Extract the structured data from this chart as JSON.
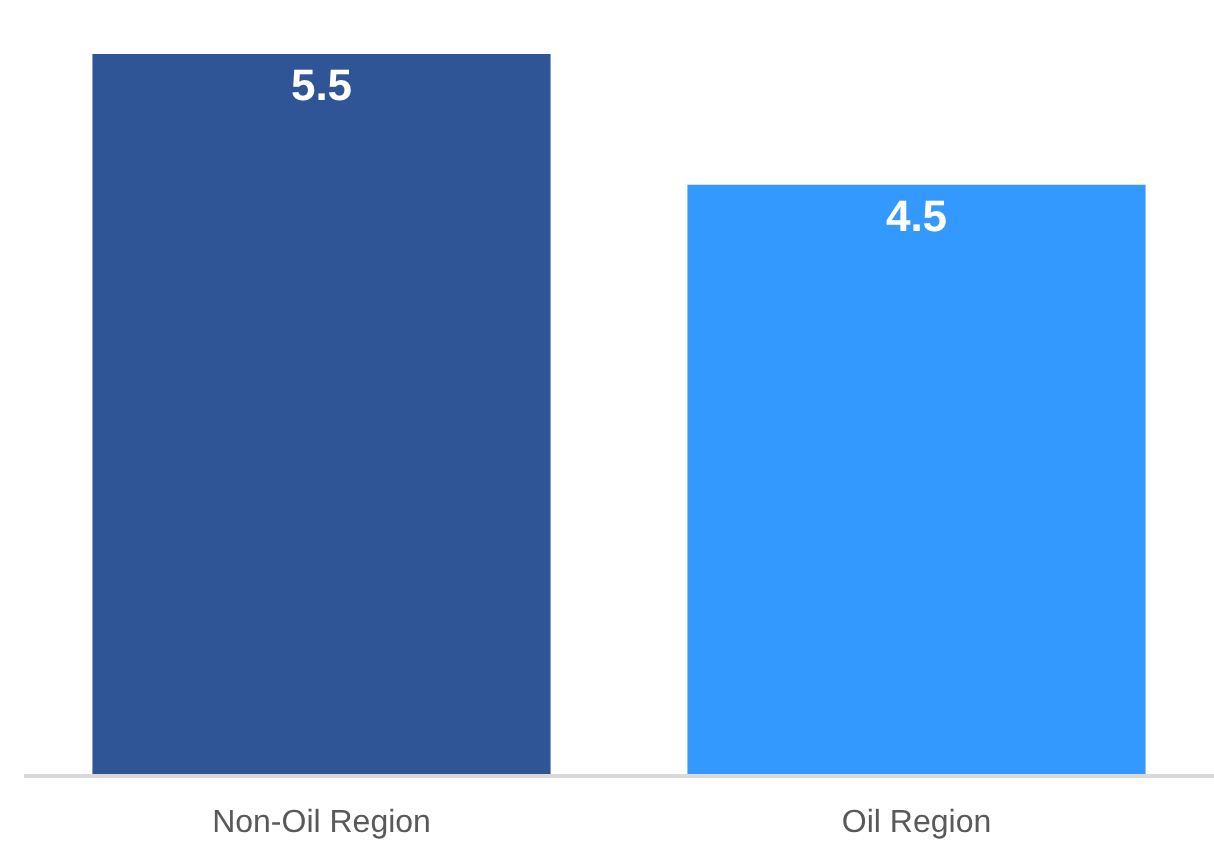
{
  "chart_data": {
    "type": "bar",
    "categories": [
      "Non-Oil Region",
      "Oil Region"
    ],
    "values": [
      5.5,
      4.5
    ],
    "colors": [
      "#2f5597",
      "#3399ff"
    ],
    "data_labels": true,
    "tick_labels": "x"
  }
}
